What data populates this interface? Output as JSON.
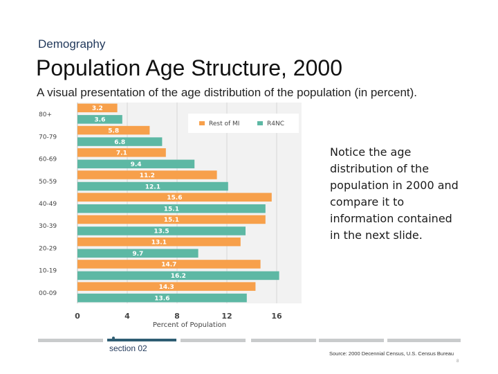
{
  "slide": {
    "section_label": "Demography",
    "title": "Population Age Structure, 2000",
    "subtitle": "A visual presentation of the age distribution of the population (in percent).",
    "note": "Notice the age distribution of the population in 2000 and compare it to information contained in the next slide.",
    "footer": {
      "section_number": "section 02",
      "source": "Source: 2000 Decennial Census, U.S. Census Bureau",
      "page_number": "8"
    }
  },
  "colors": {
    "rest_of_mi": "#F7A04B",
    "r4nc": "#5DB8A4",
    "plot_bg": "#F2F2F2",
    "footer_active": "#2F5D73",
    "footer_inactive": "#C9CBCC"
  },
  "chart_data": {
    "type": "bar",
    "orientation": "horizontal",
    "categories": [
      "80+",
      "70-79",
      "60-69",
      "50-59",
      "40-49",
      "30-39",
      "20-29",
      "10-19",
      "00-09"
    ],
    "series": [
      {
        "name": "Rest of MI",
        "values": [
          3.2,
          5.8,
          7.1,
          11.2,
          15.6,
          15.1,
          13.1,
          14.7,
          14.3
        ]
      },
      {
        "name": "R4NC",
        "values": [
          3.6,
          6.8,
          9.4,
          12.1,
          15.1,
          13.5,
          9.7,
          16.2,
          13.6
        ]
      }
    ],
    "value_labels": [
      [
        "3.2",
        "5.8",
        "7.1",
        "11.2",
        "15.6",
        "15.1",
        "13.1",
        "14.7",
        "14.3"
      ],
      [
        "3.6",
        "6.8",
        "9.4",
        "12.1",
        "15.1",
        "13.5",
        "9.7",
        "16.2",
        "13.6"
      ]
    ],
    "xlabel": "Percent of Population",
    "ylabel": "",
    "xlim": [
      0,
      18
    ],
    "xticks": [
      0,
      4,
      8,
      12,
      16
    ],
    "xtick_labels": [
      "0",
      "4",
      "8",
      "12",
      "16"
    ],
    "grid": true,
    "legend_position": "top-right"
  }
}
